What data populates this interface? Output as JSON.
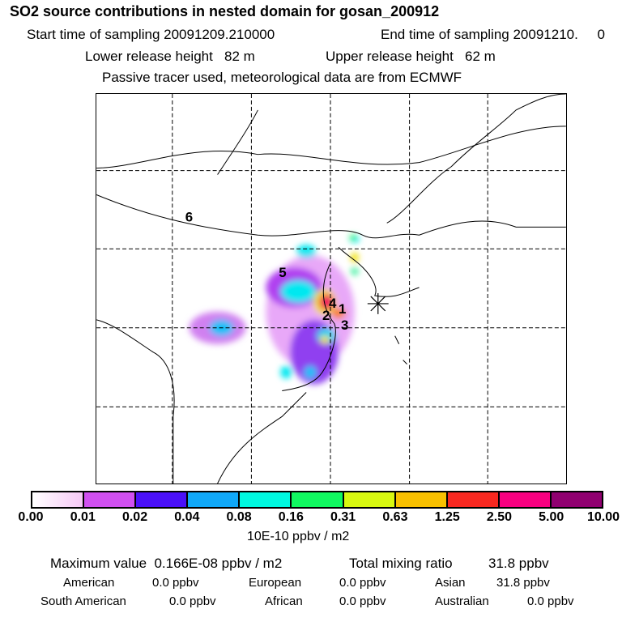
{
  "header": {
    "title": "SO2 source contributions in nested domain for gosan_200912",
    "start_label": "Start time of sampling 20091209.210000",
    "end_label": "End time of sampling 20091210.     0",
    "lower_label": "Lower release height   82 m",
    "upper_label": "Upper release height   62 m",
    "info": "Passive tracer used, meteorological data are from ECMWF"
  },
  "map": {
    "source_labels": [
      "1",
      "2",
      "3",
      "4",
      "5",
      "6"
    ],
    "receptor_icon": "asterisk-receptor-marker"
  },
  "colorbar": {
    "ticks": [
      "0.00",
      "0.01",
      "0.02",
      "0.04",
      "0.08",
      "0.16",
      "0.31",
      "0.63",
      "1.25",
      "2.50",
      "5.00",
      "10.00"
    ],
    "colors": [
      "#f6c8f6",
      "#d050f0",
      "#4a10f8",
      "#10a8f8",
      "#00f8e0",
      "#10f860",
      "#d8f810",
      "#f8c000",
      "#f82820",
      "#f80080",
      "#900070"
    ],
    "unit": "10E-10 ppbv / m2"
  },
  "summary": {
    "max_label": "Maximum value  0.166E-08 ppbv / m2",
    "total_label": "Total mixing ratio",
    "total_value": "31.8 ppbv",
    "regions": [
      {
        "name": "American",
        "value": "0.0 ppbv"
      },
      {
        "name": "European",
        "value": "0.0 ppbv"
      },
      {
        "name": "Asian",
        "value": "31.8 ppbv"
      },
      {
        "name": "South American",
        "value": "0.0 ppbv"
      },
      {
        "name": "African",
        "value": "0.0 ppbv"
      },
      {
        "name": "Australian",
        "value": "0.0 ppbv"
      }
    ]
  }
}
